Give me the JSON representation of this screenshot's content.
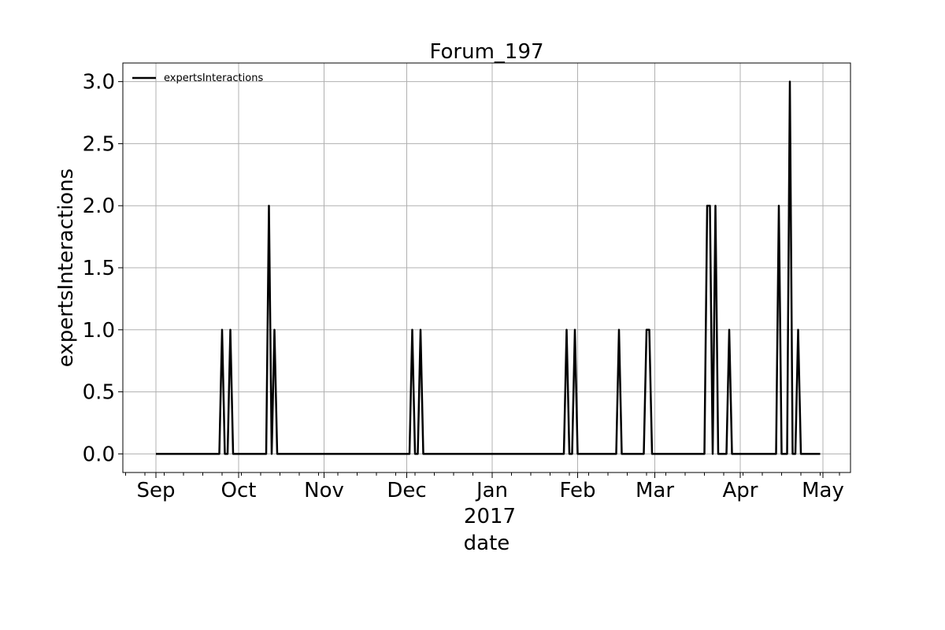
{
  "chart_data": {
    "type": "line",
    "title": "Forum_197",
    "xlabel": "date",
    "ylabel": "expertsInteractions",
    "year_label": "2017",
    "x_tick_labels": [
      "Sep",
      "Oct",
      "Nov",
      "Dec",
      "Jan",
      "Feb",
      "Mar",
      "Apr",
      "May"
    ],
    "x_tick_dates": [
      "2016-09-01",
      "2016-10-01",
      "2016-11-01",
      "2016-12-01",
      "2017-01-01",
      "2017-02-01",
      "2017-03-01",
      "2017-04-01",
      "2017-05-01"
    ],
    "y_tick_labels": [
      "0.0",
      "0.5",
      "1.0",
      "1.5",
      "2.0",
      "2.5",
      "3.0"
    ],
    "xlim": [
      "2016-08-20",
      "2017-05-11"
    ],
    "ylim": [
      -0.15,
      3.15
    ],
    "grid": true,
    "legend_position": "top-left",
    "line_color": "#000000",
    "series": [
      {
        "name": "expertsInteractions",
        "x": [
          "2016-09-01",
          "2016-09-24",
          "2016-09-25",
          "2016-09-26",
          "2016-09-27",
          "2016-09-28",
          "2016-09-29",
          "2016-09-30",
          "2016-10-11",
          "2016-10-12",
          "2016-10-13",
          "2016-10-14",
          "2016-10-15",
          "2016-10-16",
          "2016-12-02",
          "2016-12-03",
          "2016-12-04",
          "2016-12-05",
          "2016-12-06",
          "2016-12-07",
          "2016-12-08",
          "2017-01-27",
          "2017-01-28",
          "2017-01-29",
          "2017-01-30",
          "2017-01-31",
          "2017-02-01",
          "2017-02-02",
          "2017-02-15",
          "2017-02-16",
          "2017-02-17",
          "2017-02-25",
          "2017-02-26",
          "2017-02-27",
          "2017-02-28",
          "2017-03-19",
          "2017-03-20",
          "2017-03-21",
          "2017-03-22",
          "2017-03-23",
          "2017-03-24",
          "2017-03-27",
          "2017-03-28",
          "2017-03-29",
          "2017-04-14",
          "2017-04-15",
          "2017-04-16",
          "2017-04-17",
          "2017-04-18",
          "2017-04-19",
          "2017-04-20",
          "2017-04-21",
          "2017-04-22",
          "2017-04-23",
          "2017-04-30"
        ],
        "values": [
          0,
          0,
          1,
          0,
          0,
          1,
          0,
          0,
          0,
          2,
          0,
          1,
          0,
          0,
          0,
          1,
          0,
          0,
          1,
          0,
          0,
          0,
          1,
          0,
          0,
          1,
          0,
          0,
          0,
          1,
          0,
          0,
          1,
          1,
          0,
          0,
          2,
          2,
          0,
          2,
          0,
          0,
          1,
          0,
          0,
          2,
          0,
          0,
          0,
          3,
          0,
          0,
          1,
          0,
          0
        ]
      }
    ]
  }
}
